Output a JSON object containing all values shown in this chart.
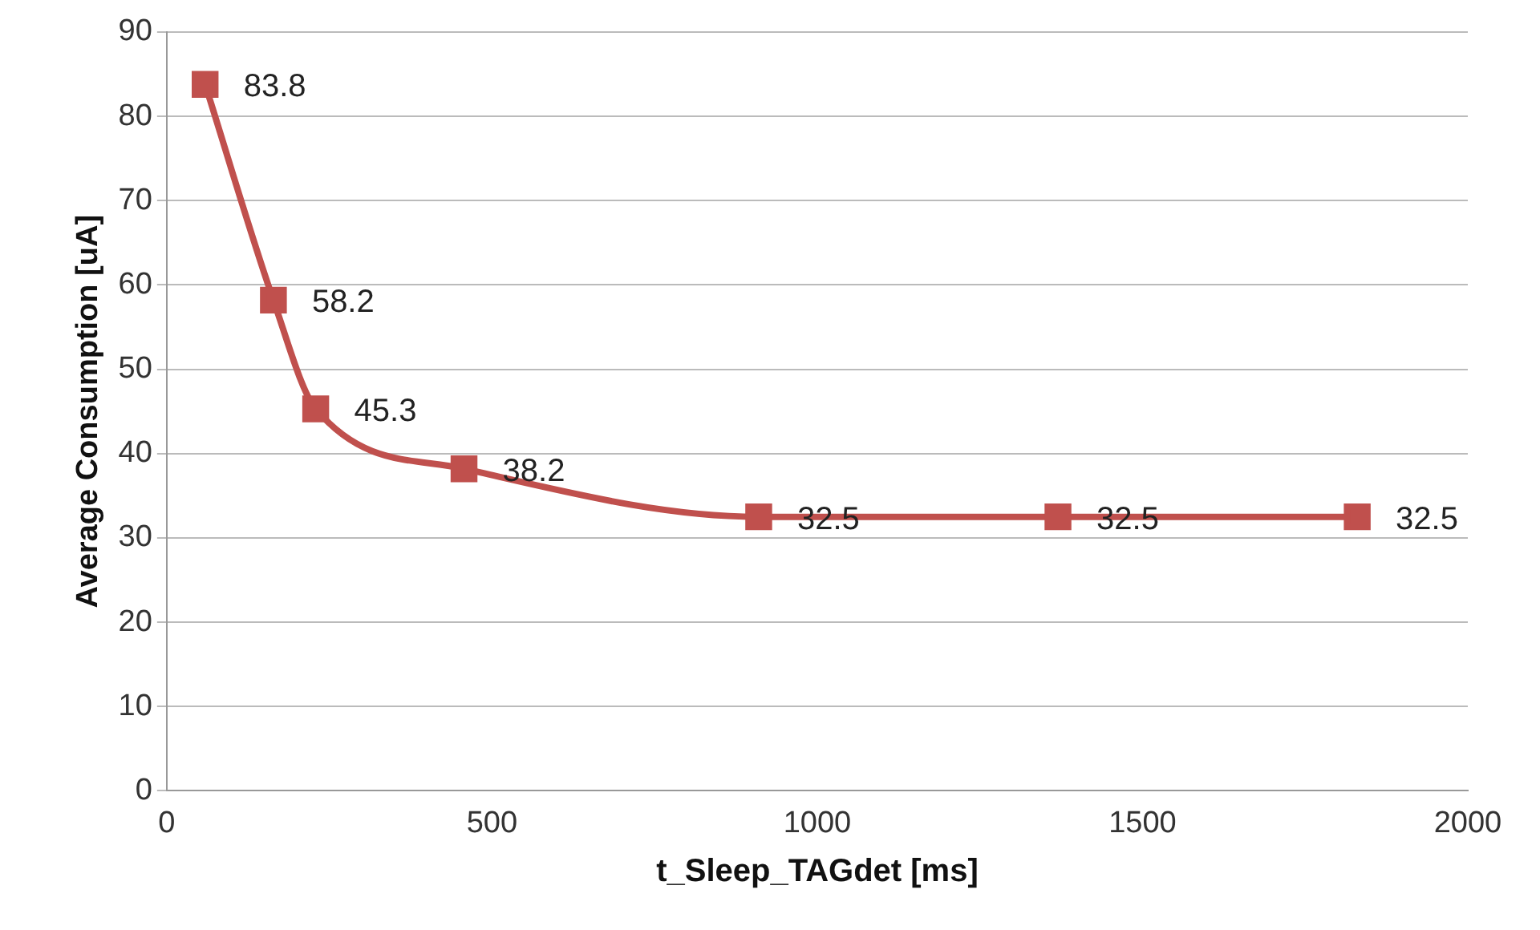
{
  "chart_data": {
    "type": "line",
    "xlabel": "t_Sleep_TAGdet [ms]",
    "ylabel": "Average Consumption [uA]",
    "x": [
      59,
      164,
      229,
      457,
      910,
      1370,
      1830
    ],
    "series": [
      {
        "color": "#c0504d",
        "values": [
          83.8,
          58.2,
          45.3,
          38.2,
          32.5,
          32.5,
          32.5
        ]
      }
    ],
    "xlim": [
      0,
      2000
    ],
    "xticks": [
      0,
      500,
      1000,
      1500,
      2000
    ],
    "ylim": [
      0,
      90
    ],
    "yticks": [
      0,
      10,
      20,
      30,
      40,
      50,
      60,
      70,
      80,
      90
    ],
    "grid": "y",
    "legend": false,
    "marker": "square",
    "line_style": "solid",
    "data_labels": true
  }
}
